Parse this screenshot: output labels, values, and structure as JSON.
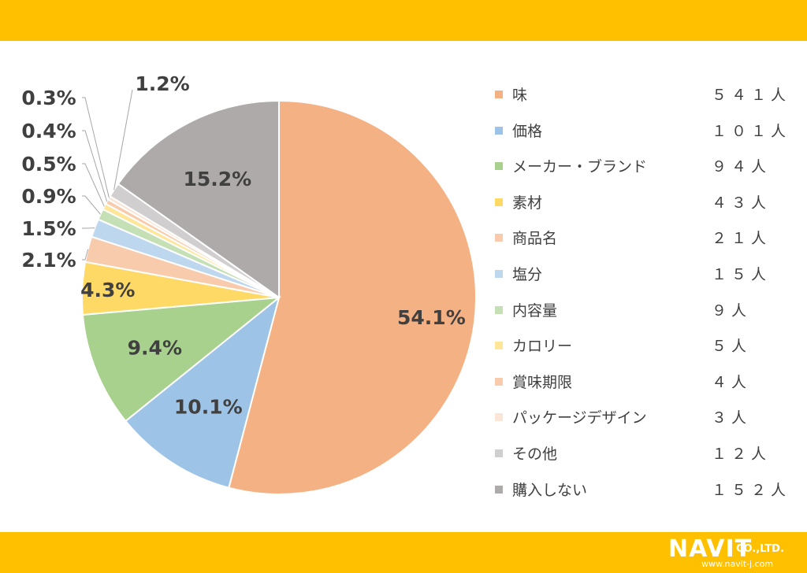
{
  "chart_data": {
    "type": "pie",
    "title": "",
    "categories": [
      "味",
      "価格",
      "メーカー・ブランド",
      "素材",
      "商品名",
      "塩分",
      "内容量",
      "カロリー",
      "賞味期限",
      "パッケージデザイン",
      "その他",
      "購入しない"
    ],
    "counts": [
      "５４１人",
      "１０１人",
      "９４人",
      "４３人",
      "２１人",
      "１５人",
      "９人",
      "５人",
      "４人",
      "３人",
      "１２人",
      "１５２人"
    ],
    "values": [
      54.1,
      10.1,
      9.4,
      4.3,
      2.1,
      1.5,
      0.9,
      0.5,
      0.4,
      0.3,
      1.2,
      15.2
    ],
    "data_labels": [
      "54.1%",
      "10.1%",
      "9.4%",
      "4.3%",
      "2.1%",
      "1.5%",
      "0.9%",
      "0.5%",
      "0.4%",
      "0.3%",
      "1.2%",
      "15.2%"
    ],
    "colors": [
      "#f4b183",
      "#9dc3e6",
      "#a9d18e",
      "#ffd966",
      "#f8cbad",
      "#bdd7ee",
      "#c5e0b4",
      "#ffe699",
      "#f8cbad",
      "#fbe5d6",
      "#d0cece",
      "#aeaaaa"
    ],
    "legend_position": "right",
    "start_angle": "12 o'clock, clockwise"
  },
  "logo": {
    "brand": "NAVIT",
    "suffix": "CO.,LTD.",
    "url": "www.navit-j.com"
  }
}
